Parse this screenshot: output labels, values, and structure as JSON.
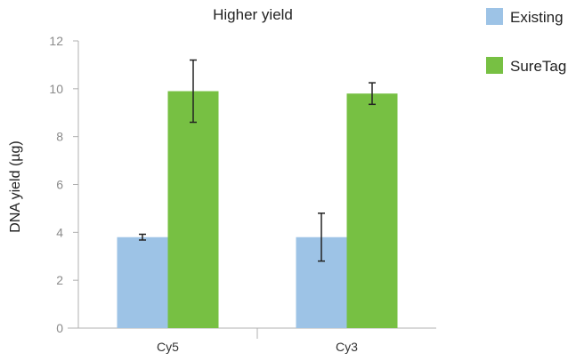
{
  "chart_data": {
    "type": "bar",
    "title": "Higher yield",
    "xlabel": "",
    "ylabel": "DNA yield (µg)",
    "ylim": [
      0,
      12
    ],
    "yticks": [
      0,
      2,
      4,
      6,
      8,
      10,
      12
    ],
    "categories": [
      "Cy5",
      "Cy3"
    ],
    "series": [
      {
        "name": "Existing",
        "color": "#9dc3e6",
        "values": [
          3.8,
          3.8
        ],
        "error": [
          0.12,
          1.0
        ]
      },
      {
        "name": "SureTag",
        "color": "#77c043",
        "values": [
          9.9,
          9.8
        ],
        "error": [
          1.3,
          0.45
        ]
      }
    ],
    "legend_position": "top-right",
    "grid": false
  }
}
